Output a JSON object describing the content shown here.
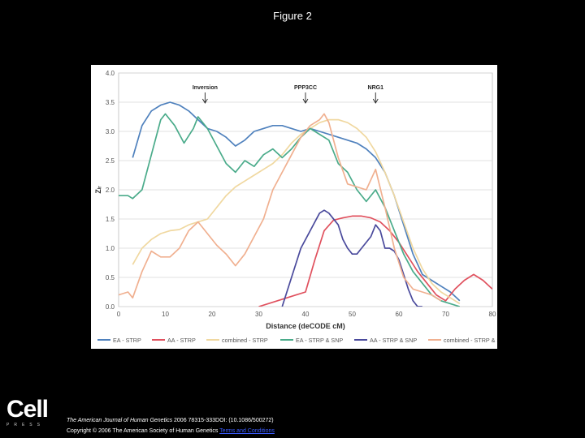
{
  "figure_title": "Figure 2",
  "cell_logo": {
    "word": "Cell",
    "sub": "PRESS"
  },
  "citation": {
    "journal": "The American Journal of Human Genetics",
    "details": " 2006 78315-333DOI: (10.1086/500272)"
  },
  "copyright": {
    "text": "Copyright © 2006 The American Society of Human Genetics ",
    "terms_link": "Terms and Conditions"
  },
  "chart_data": {
    "type": "line",
    "xlabel": "Distance (deCODE cM)",
    "ylabel": "Zₗᵣ",
    "xlim": [
      0,
      80
    ],
    "ylim": [
      0,
      4
    ],
    "xticks": [
      0,
      10,
      20,
      30,
      40,
      50,
      60,
      70,
      80
    ],
    "yticks": [
      0.0,
      0.5,
      1.0,
      1.5,
      2.0,
      2.5,
      3.0,
      3.5,
      4.0
    ],
    "grid": true,
    "legend_position": "bottom",
    "annotations": [
      {
        "text": "Inversion",
        "x": 18.5
      },
      {
        "text": "PPP3CC",
        "x": 40
      },
      {
        "text": "NRG1",
        "x": 55
      }
    ],
    "series": [
      {
        "name": "EA - STRP",
        "color": "#4f81bd",
        "x": [
          3,
          5,
          7,
          9,
          11,
          13,
          15,
          17,
          19,
          21,
          23,
          25,
          27,
          29,
          31,
          33,
          35,
          37,
          39,
          41,
          43,
          45,
          47,
          49,
          51,
          53,
          55,
          57,
          59,
          61,
          63,
          65,
          67,
          69,
          71,
          73
        ],
        "y": [
          2.55,
          3.1,
          3.35,
          3.45,
          3.5,
          3.45,
          3.35,
          3.2,
          3.05,
          3.0,
          2.9,
          2.75,
          2.85,
          3.0,
          3.05,
          3.1,
          3.1,
          3.05,
          3.0,
          3.05,
          3.0,
          2.95,
          2.9,
          2.85,
          2.8,
          2.7,
          2.55,
          2.3,
          1.9,
          1.4,
          0.9,
          0.55,
          0.45,
          0.35,
          0.25,
          0.1
        ]
      },
      {
        "name": "AA - STRP",
        "color": "#e0515e",
        "x": [
          30,
          32,
          34,
          36,
          38,
          40,
          42,
          44,
          46,
          48,
          50,
          52,
          54,
          56,
          58,
          60,
          62,
          64,
          66,
          68,
          70,
          72,
          74,
          76,
          78,
          80
        ],
        "y": [
          0.0,
          0.05,
          0.1,
          0.15,
          0.2,
          0.25,
          0.8,
          1.3,
          1.48,
          1.52,
          1.55,
          1.55,
          1.52,
          1.45,
          1.3,
          1.1,
          0.85,
          0.6,
          0.4,
          0.2,
          0.1,
          0.3,
          0.45,
          0.55,
          0.45,
          0.3
        ]
      },
      {
        "name": "combined - STRP",
        "color": "#f0d8a0",
        "x": [
          3,
          5,
          7,
          9,
          11,
          13,
          15,
          17,
          19,
          21,
          23,
          25,
          27,
          29,
          31,
          33,
          35,
          37,
          39,
          41,
          43,
          45,
          47,
          49,
          51,
          53,
          55,
          57,
          59,
          61,
          63,
          65,
          67,
          69,
          71,
          73
        ],
        "y": [
          0.72,
          1.0,
          1.15,
          1.25,
          1.3,
          1.32,
          1.4,
          1.45,
          1.5,
          1.7,
          1.9,
          2.05,
          2.15,
          2.25,
          2.35,
          2.45,
          2.6,
          2.8,
          2.95,
          3.05,
          3.15,
          3.2,
          3.2,
          3.15,
          3.05,
          2.9,
          2.65,
          2.3,
          1.9,
          1.45,
          1.0,
          0.65,
          0.4,
          0.25,
          0.15,
          0.05
        ]
      },
      {
        "name": "EA - STRP & SNP",
        "color": "#4aab8a",
        "x": [
          0,
          2,
          3,
          5,
          7,
          9,
          10,
          12,
          14,
          16,
          17,
          19,
          21,
          23,
          25,
          27,
          29,
          31,
          33,
          35,
          37,
          39,
          41,
          43,
          45,
          47,
          49,
          51,
          53,
          55,
          57,
          59,
          61,
          63,
          65,
          67,
          69,
          71,
          73
        ],
        "y": [
          1.9,
          1.9,
          1.85,
          2.0,
          2.6,
          3.2,
          3.3,
          3.1,
          2.8,
          3.05,
          3.25,
          3.05,
          2.75,
          2.45,
          2.3,
          2.5,
          2.4,
          2.6,
          2.7,
          2.55,
          2.7,
          2.9,
          3.05,
          2.95,
          2.85,
          2.45,
          2.3,
          2.0,
          1.8,
          2.0,
          1.7,
          1.3,
          0.9,
          0.6,
          0.4,
          0.2,
          0.1,
          0.05,
          0.0
        ]
      },
      {
        "name": "AA - STRP & SNP",
        "color": "#4a4a9c",
        "x": [
          35,
          37,
          39,
          41,
          43,
          44,
          45,
          47,
          48,
          49,
          50,
          51,
          52,
          54,
          55,
          56,
          57,
          58,
          59,
          60,
          61,
          62,
          63,
          64,
          65
        ],
        "y": [
          0.0,
          0.5,
          1.0,
          1.3,
          1.6,
          1.65,
          1.6,
          1.4,
          1.15,
          1.0,
          0.9,
          0.9,
          1.0,
          1.2,
          1.4,
          1.3,
          1.0,
          1.0,
          0.95,
          0.8,
          0.55,
          0.3,
          0.1,
          0.0,
          0.0
        ]
      },
      {
        "name": "combined - STRP & SNP",
        "color": "#f0b090",
        "x": [
          0,
          2,
          3,
          5,
          7,
          9,
          11,
          13,
          15,
          17,
          19,
          21,
          23,
          25,
          27,
          29,
          31,
          33,
          35,
          37,
          39,
          41,
          43,
          44,
          45,
          47,
          49,
          51,
          53,
          55,
          57,
          59,
          61,
          63,
          65,
          67,
          69
        ],
        "y": [
          0.2,
          0.25,
          0.15,
          0.6,
          0.95,
          0.85,
          0.85,
          1.0,
          1.3,
          1.45,
          1.25,
          1.05,
          0.9,
          0.7,
          0.9,
          1.2,
          1.5,
          2.0,
          2.3,
          2.6,
          2.9,
          3.1,
          3.2,
          3.3,
          3.15,
          2.55,
          2.1,
          2.05,
          2.0,
          2.35,
          1.7,
          1.0,
          0.5,
          0.3,
          0.25,
          0.2,
          0.1
        ]
      }
    ]
  }
}
